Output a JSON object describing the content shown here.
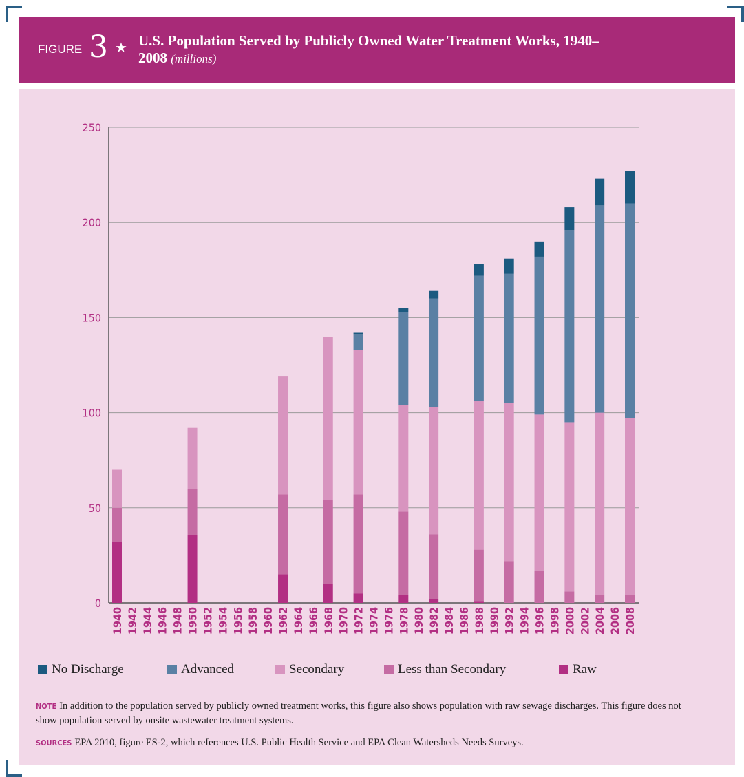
{
  "header": {
    "label": "FIGURE",
    "number": "3",
    "star": "★"
  },
  "chart_data": {
    "type": "stacked-bar",
    "title": "U.S. Population Served by Publicly Owned Water Treatment Works, 1940–2008",
    "subtitle": "(millions)",
    "categories": [
      "1940",
      "1942",
      "1944",
      "1946",
      "1948",
      "1950",
      "1952",
      "1954",
      "1956",
      "1958",
      "1960",
      "1962",
      "1964",
      "1966",
      "1968",
      "1970",
      "1972",
      "1974",
      "1976",
      "1978",
      "1980",
      "1982",
      "1984",
      "1986",
      "1988",
      "1990",
      "1992",
      "1994",
      "1996",
      "1998",
      "2000",
      "2002",
      "2004",
      "2006",
      "2008"
    ],
    "series": [
      {
        "name": "No Discharge",
        "color": "#1c5a80",
        "values": [
          0,
          null,
          null,
          null,
          null,
          0,
          null,
          null,
          null,
          null,
          null,
          0,
          null,
          null,
          0,
          null,
          1,
          null,
          null,
          2,
          null,
          4,
          null,
          null,
          6,
          null,
          8,
          null,
          8,
          null,
          12,
          null,
          14,
          null,
          17
        ]
      },
      {
        "name": "Advanced",
        "color": "#5a80a4",
        "values": [
          0,
          null,
          null,
          null,
          null,
          0,
          null,
          null,
          null,
          null,
          null,
          0,
          null,
          null,
          0,
          null,
          8,
          null,
          null,
          49,
          null,
          57,
          null,
          null,
          66,
          null,
          68,
          null,
          83,
          null,
          101,
          null,
          109,
          null,
          113
        ]
      },
      {
        "name": "Secondary",
        "color": "#d894bf",
        "values": [
          20,
          null,
          null,
          null,
          null,
          32,
          null,
          null,
          null,
          null,
          null,
          62,
          null,
          null,
          86,
          null,
          76,
          null,
          null,
          56,
          null,
          67,
          null,
          null,
          78,
          null,
          83,
          null,
          82,
          null,
          89,
          null,
          96,
          null,
          93
        ]
      },
      {
        "name": "Less than Secondary",
        "color": "#c56ba3",
        "values": [
          18,
          null,
          null,
          null,
          null,
          24.5,
          null,
          null,
          null,
          null,
          null,
          42,
          null,
          null,
          44,
          null,
          52,
          null,
          null,
          44,
          null,
          34,
          null,
          null,
          27,
          null,
          22,
          null,
          17,
          null,
          6,
          null,
          4,
          null,
          4
        ]
      },
      {
        "name": "Raw",
        "color": "#b22f83",
        "values": [
          32,
          null,
          null,
          null,
          null,
          35.5,
          null,
          null,
          null,
          null,
          null,
          15,
          null,
          null,
          10,
          null,
          5,
          null,
          null,
          4,
          null,
          2,
          null,
          null,
          1,
          null,
          0,
          null,
          0,
          null,
          0,
          null,
          0,
          null,
          0
        ]
      }
    ],
    "ylim": [
      0,
      250
    ],
    "yticks": [
      0,
      50,
      100,
      150,
      200,
      250
    ],
    "grid": true,
    "legend": "bottom"
  },
  "notes": {
    "note_label": "NOTE",
    "note": "In addition to the population served by publicly owned treatment works, this figure also shows population with raw sewage discharges. This figure does not show population served by onsite wastewater treatment systems.",
    "sources_label": "SOURCES",
    "sources": "EPA 2010, figure ES-2, which references U.S. Public Health Service and EPA Clean Watersheds Needs Surveys."
  }
}
